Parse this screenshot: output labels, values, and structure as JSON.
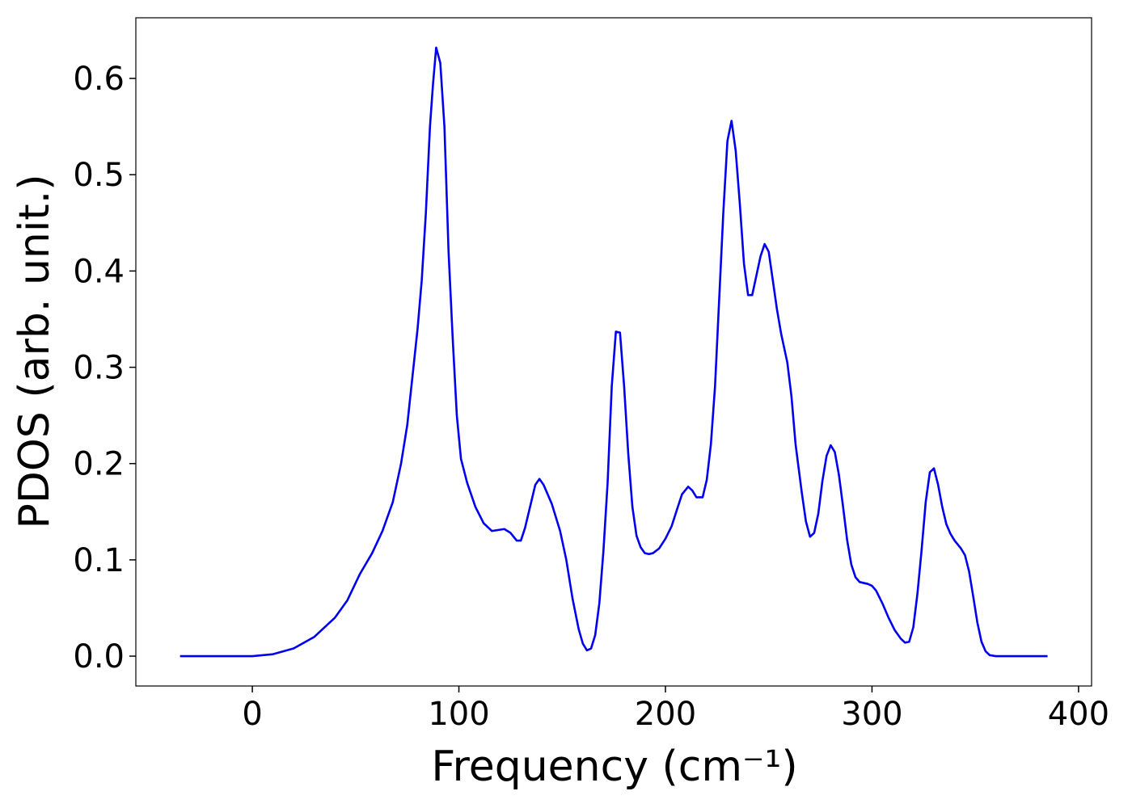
{
  "chart_data": {
    "type": "line",
    "xlabel": "Frequency (cm⁻¹)",
    "ylabel": "PDOS (arb. unit.)",
    "xlim": [
      -56.4,
      406.3
    ],
    "ylim": [
      -0.031,
      0.663
    ],
    "xticks": [
      0,
      100,
      200,
      300,
      400
    ],
    "yticks": [
      {
        "value": 0,
        "label": "0.0"
      },
      0.1,
      0.2,
      0.3,
      0.4,
      0.5,
      0.6
    ],
    "grid": false,
    "series": [
      {
        "color": "#0000ee",
        "x": [
          -35,
          0,
          10,
          20,
          30,
          40,
          46,
          52,
          58,
          63,
          68,
          72,
          75,
          78,
          80,
          82,
          84,
          86,
          87.5,
          89,
          91,
          93,
          95,
          97,
          99,
          101,
          104,
          108,
          112,
          116,
          122,
          125,
          128,
          130,
          132,
          135,
          137,
          139,
          141,
          145,
          149,
          152,
          155,
          158,
          160,
          162,
          164,
          166,
          168,
          170,
          172,
          174,
          176,
          178,
          180,
          182,
          184,
          186,
          188,
          190,
          192,
          194,
          197,
          200,
          203,
          206,
          208,
          211,
          213,
          215,
          218,
          220,
          222,
          224,
          226,
          228,
          230,
          232,
          234,
          236,
          238,
          240,
          242,
          244,
          246,
          248,
          250,
          252,
          254,
          256,
          259,
          261,
          263,
          266,
          268,
          270,
          272,
          274,
          276,
          278,
          280,
          282,
          284,
          286,
          288,
          290,
          292,
          294,
          298,
          300,
          302,
          305,
          308,
          311,
          314,
          316,
          318,
          320,
          322,
          324,
          326,
          328,
          330,
          332,
          334,
          336,
          338,
          340,
          343,
          345,
          347,
          349,
          351,
          353,
          355,
          357,
          360,
          385
        ],
        "values": [
          0,
          0,
          0.002,
          0.008,
          0.02,
          0.04,
          0.058,
          0.085,
          0.107,
          0.13,
          0.16,
          0.2,
          0.24,
          0.3,
          0.34,
          0.39,
          0.46,
          0.55,
          0.595,
          0.632,
          0.616,
          0.55,
          0.42,
          0.33,
          0.25,
          0.205,
          0.18,
          0.155,
          0.138,
          0.13,
          0.132,
          0.128,
          0.12,
          0.12,
          0.133,
          0.16,
          0.178,
          0.184,
          0.178,
          0.158,
          0.13,
          0.1,
          0.06,
          0.028,
          0.013,
          0.006,
          0.008,
          0.022,
          0.055,
          0.11,
          0.18,
          0.28,
          0.337,
          0.336,
          0.28,
          0.21,
          0.155,
          0.125,
          0.113,
          0.107,
          0.106,
          0.107,
          0.112,
          0.122,
          0.135,
          0.155,
          0.168,
          0.176,
          0.172,
          0.165,
          0.165,
          0.183,
          0.22,
          0.28,
          0.37,
          0.46,
          0.535,
          0.556,
          0.525,
          0.47,
          0.408,
          0.375,
          0.375,
          0.395,
          0.415,
          0.428,
          0.42,
          0.39,
          0.36,
          0.335,
          0.305,
          0.27,
          0.22,
          0.17,
          0.14,
          0.124,
          0.128,
          0.148,
          0.182,
          0.208,
          0.219,
          0.212,
          0.188,
          0.155,
          0.12,
          0.095,
          0.082,
          0.077,
          0.075,
          0.073,
          0.068,
          0.055,
          0.04,
          0.027,
          0.018,
          0.014,
          0.015,
          0.03,
          0.065,
          0.11,
          0.16,
          0.191,
          0.195,
          0.178,
          0.155,
          0.137,
          0.127,
          0.12,
          0.112,
          0.105,
          0.088,
          0.062,
          0.035,
          0.015,
          0.005,
          0.001,
          0,
          0
        ]
      }
    ]
  }
}
